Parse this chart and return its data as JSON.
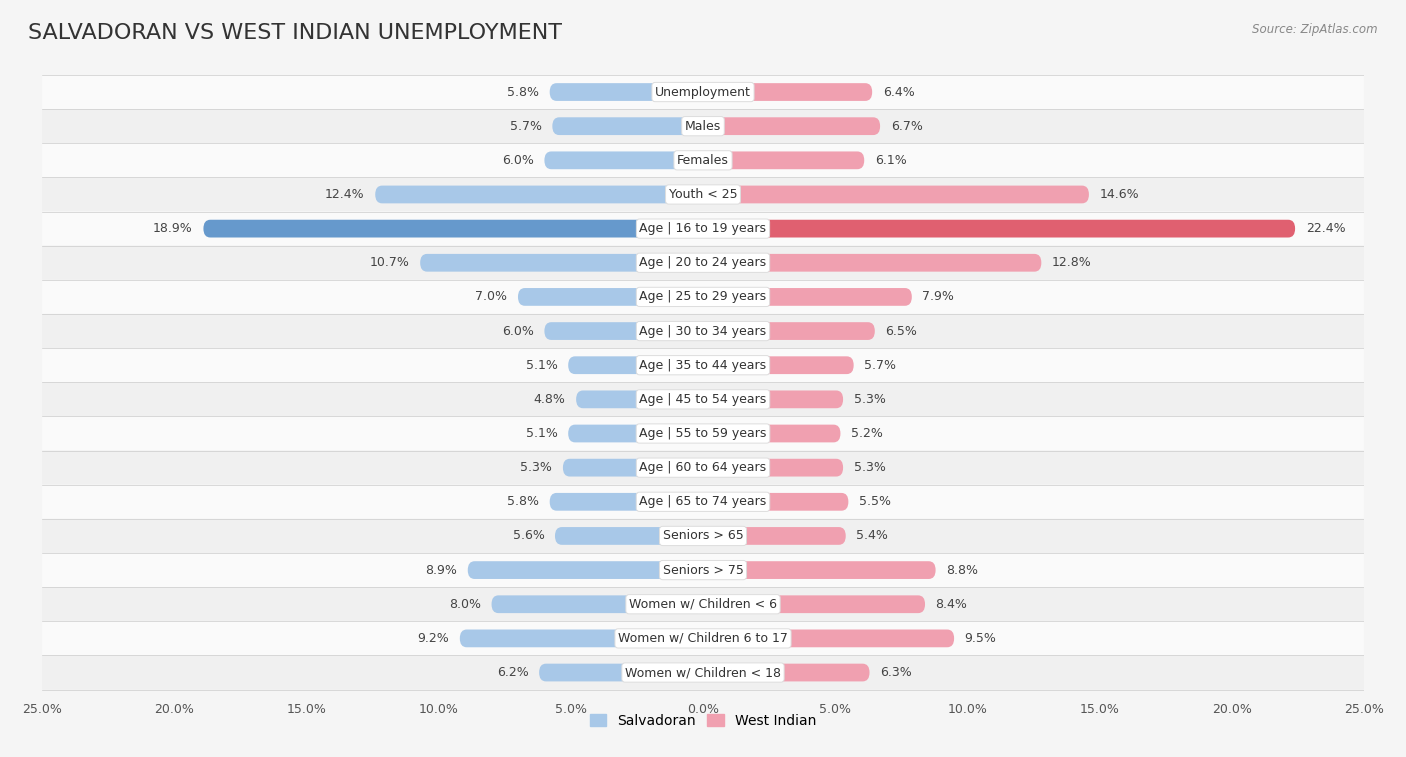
{
  "title": "SALVADORAN VS WEST INDIAN UNEMPLOYMENT",
  "source": "Source: ZipAtlas.com",
  "categories": [
    "Unemployment",
    "Males",
    "Females",
    "Youth < 25",
    "Age | 16 to 19 years",
    "Age | 20 to 24 years",
    "Age | 25 to 29 years",
    "Age | 30 to 34 years",
    "Age | 35 to 44 years",
    "Age | 45 to 54 years",
    "Age | 55 to 59 years",
    "Age | 60 to 64 years",
    "Age | 65 to 74 years",
    "Seniors > 65",
    "Seniors > 75",
    "Women w/ Children < 6",
    "Women w/ Children 6 to 17",
    "Women w/ Children < 18"
  ],
  "salvadoran": [
    5.8,
    5.7,
    6.0,
    12.4,
    18.9,
    10.7,
    7.0,
    6.0,
    5.1,
    4.8,
    5.1,
    5.3,
    5.8,
    5.6,
    8.9,
    8.0,
    9.2,
    6.2
  ],
  "west_indian": [
    6.4,
    6.7,
    6.1,
    14.6,
    22.4,
    12.8,
    7.9,
    6.5,
    5.7,
    5.3,
    5.2,
    5.3,
    5.5,
    5.4,
    8.8,
    8.4,
    9.5,
    6.3
  ],
  "salvadoran_color": "#a8c8e8",
  "west_indian_color": "#f0a0b0",
  "salvadoran_highlight_color": "#6699cc",
  "west_indian_highlight_color": "#e06070",
  "row_color_odd": "#f0f0f0",
  "row_color_even": "#fafafa",
  "background_color": "#f5f5f5",
  "xlim": 25.0,
  "bar_height": 0.52,
  "title_fontsize": 16,
  "label_fontsize": 9,
  "tick_fontsize": 9,
  "legend_fontsize": 10,
  "value_fontsize": 9
}
